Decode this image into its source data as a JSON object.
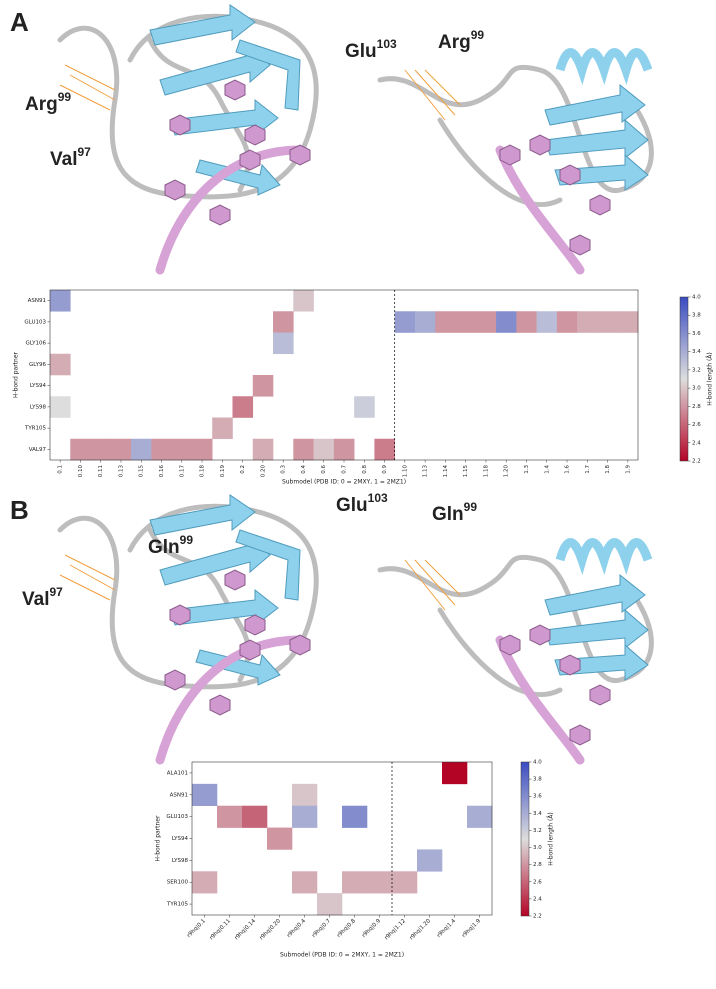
{
  "panels": [
    {
      "label": "A",
      "residues": [
        {
          "name": "Arg",
          "sup": "99"
        },
        {
          "name": "Val",
          "sup": "97"
        },
        {
          "name": "Glu",
          "sup": "103"
        },
        {
          "name": "Arg",
          "sup": "99"
        }
      ],
      "heatmap": {
        "type": "heatmap",
        "x_label": "Submodel (PDB ID: 0 = 2MXY, 1 = 2MZ1)",
        "y_label": "H-bond partner",
        "categories": [
          "0.1",
          "0.10",
          "0.11",
          "0.13",
          "0.15",
          "0.16",
          "0.17",
          "0.18",
          "0.19",
          "0.2",
          "0.20",
          "0.3",
          "0.4",
          "0.6",
          "0.7",
          "0.8",
          "0.9",
          "1.10",
          "1.13",
          "1.14",
          "1.15",
          "1.18",
          "1.20",
          "1.3",
          "1.4",
          "1.6",
          "1.7",
          "1.8",
          "1.9"
        ],
        "rows": [
          "ASN91",
          "GLU103",
          "GLY106",
          "GLY96",
          "LYS94",
          "LYS98",
          "TYR105",
          "VAL97"
        ],
        "values": [
          [
            3.5,
            null,
            null,
            null,
            null,
            null,
            null,
            null,
            null,
            null,
            null,
            null,
            3.0,
            null,
            null,
            null,
            null,
            null,
            null,
            null,
            null,
            null,
            null,
            null,
            null,
            null,
            null,
            null,
            null
          ],
          [
            null,
            null,
            null,
            null,
            null,
            null,
            null,
            null,
            null,
            null,
            null,
            2.8,
            null,
            null,
            null,
            null,
            null,
            3.5,
            3.4,
            2.8,
            2.8,
            2.8,
            3.6,
            2.8,
            3.3,
            2.8,
            2.9,
            2.9,
            2.9
          ],
          [
            null,
            null,
            null,
            null,
            null,
            null,
            null,
            null,
            null,
            null,
            null,
            3.3,
            null,
            null,
            null,
            null,
            null,
            null,
            null,
            null,
            null,
            null,
            null,
            null,
            null,
            null,
            null,
            null,
            null
          ],
          [
            2.9,
            null,
            null,
            null,
            null,
            null,
            null,
            null,
            null,
            null,
            null,
            null,
            null,
            null,
            null,
            null,
            null,
            null,
            null,
            null,
            null,
            null,
            null,
            null,
            null,
            null,
            null,
            null,
            null
          ],
          [
            null,
            null,
            null,
            null,
            null,
            null,
            null,
            null,
            null,
            null,
            2.8,
            null,
            null,
            null,
            null,
            null,
            null,
            null,
            null,
            null,
            null,
            null,
            null,
            null,
            null,
            null,
            null,
            null,
            null
          ],
          [
            3.1,
            null,
            null,
            null,
            null,
            null,
            null,
            null,
            null,
            2.7,
            null,
            null,
            null,
            null,
            null,
            3.2,
            null,
            null,
            null,
            null,
            null,
            null,
            null,
            null,
            null,
            null,
            null,
            null,
            null
          ],
          [
            null,
            null,
            null,
            null,
            null,
            null,
            null,
            null,
            2.9,
            null,
            null,
            null,
            null,
            null,
            null,
            null,
            null,
            null,
            null,
            null,
            null,
            null,
            null,
            null,
            null,
            null,
            null,
            null,
            null
          ],
          [
            null,
            2.8,
            2.8,
            2.8,
            3.4,
            2.8,
            2.8,
            2.8,
            null,
            null,
            2.9,
            null,
            2.8,
            3.0,
            2.8,
            null,
            2.7,
            null,
            null,
            null,
            null,
            null,
            null,
            null,
            null,
            null,
            null,
            null,
            null
          ]
        ],
        "colorbar": {
          "label": "H-bond length (Å)",
          "lim": [
            2.2,
            4.0
          ],
          "ticks": [
            2.2,
            2.4,
            2.6,
            2.8,
            {
              "value": 3.0,
              "label": "3.0"
            },
            3.2,
            3.4,
            3.6,
            3.8,
            {
              "value": 4.0,
              "label": "4.0"
            }
          ]
        }
      }
    },
    {
      "label": "B",
      "residues": [
        {
          "name": "Gln",
          "sup": "99"
        },
        {
          "name": "Val",
          "sup": "97"
        },
        {
          "name": "Glu",
          "sup": "103"
        },
        {
          "name": "Gln",
          "sup": "99"
        }
      ],
      "heatmap": {
        "type": "heatmap",
        "x_label": "Submodel (PDB ID: 0 = 2MXY, 1 = 2MZ1)",
        "y_label": "H-bond partner",
        "categories": [
          "r9hq|0.1",
          "r9hq|0.11",
          "r9hq|0.14",
          "r9hq|0.20",
          "r9hq|0.4",
          "r9hq|0.7",
          "r9hq|0.8",
          "r9hq|0.9",
          "r9hq|1.12",
          "r9hq|1.20",
          "r9hq|1.4",
          "r9hq|1.9"
        ],
        "rows": [
          "ALA101",
          "ASN91",
          "GLU103",
          "LYS94",
          "LYS98",
          "SER100",
          "TYR105"
        ],
        "values": [
          [
            null,
            null,
            null,
            null,
            null,
            null,
            null,
            null,
            null,
            null,
            2.2,
            null
          ],
          [
            3.5,
            null,
            null,
            null,
            3.0,
            null,
            null,
            null,
            null,
            null,
            null,
            null
          ],
          [
            null,
            2.8,
            2.6,
            null,
            3.4,
            null,
            3.6,
            null,
            null,
            null,
            null,
            3.4
          ],
          [
            null,
            null,
            null,
            2.8,
            null,
            null,
            null,
            null,
            null,
            null,
            null,
            null
          ],
          [
            null,
            null,
            null,
            null,
            null,
            null,
            null,
            null,
            null,
            3.4,
            null,
            null
          ],
          [
            2.9,
            null,
            null,
            null,
            2.9,
            null,
            2.9,
            2.9,
            2.9,
            null,
            null,
            null
          ],
          [
            null,
            null,
            null,
            null,
            null,
            3.0,
            null,
            null,
            null,
            null,
            null,
            null
          ]
        ],
        "colorbar": {
          "label": "H-bond length (Å)",
          "lim": [
            2.2,
            4.0
          ],
          "ticks": [
            2.2,
            2.4,
            2.6,
            2.8,
            {
              "value": 3.0,
              "label": "3.0"
            },
            3.2,
            3.4,
            3.6,
            3.8,
            {
              "value": 4.0,
              "label": "4.0"
            }
          ]
        }
      }
    }
  ]
}
